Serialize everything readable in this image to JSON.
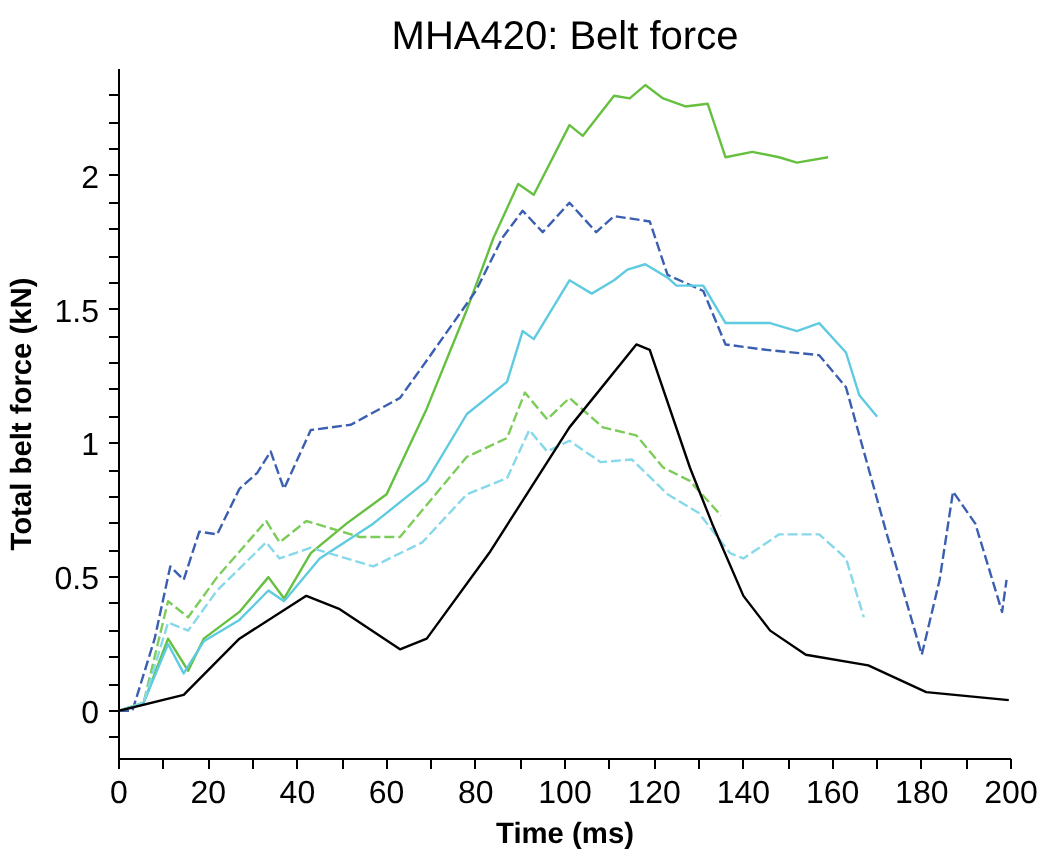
{
  "chart_data": {
    "type": "line",
    "title": "MHA420: Belt force",
    "xlabel": "Time (ms)",
    "ylabel": "Total belt force (kN)",
    "xlim": [
      0,
      200
    ],
    "ylim": [
      -0.18,
      2.4
    ],
    "xticks": [
      0,
      20,
      40,
      60,
      80,
      100,
      120,
      140,
      160,
      180,
      200,
      {
        "value": 10,
        "label": null
      },
      {
        "value": 30,
        "label": null
      },
      {
        "value": 50,
        "label": null
      },
      {
        "value": 70,
        "label": null
      },
      {
        "value": 90,
        "label": null
      },
      {
        "value": 110,
        "label": null
      },
      {
        "value": 130,
        "label": null
      },
      {
        "value": 150,
        "label": null
      },
      {
        "value": 170,
        "label": null
      },
      {
        "value": 190,
        "label": null
      }
    ],
    "yticks": [
      0,
      0.5,
      1,
      1.5,
      2,
      {
        "value": -0.1,
        "label": null
      },
      {
        "value": 0.1,
        "label": null
      },
      {
        "value": 0.2,
        "label": null
      },
      {
        "value": 0.3,
        "label": null
      },
      {
        "value": 0.4,
        "label": null
      },
      {
        "value": 0.6,
        "label": null
      },
      {
        "value": 0.7,
        "label": null
      },
      {
        "value": 0.8,
        "label": null
      },
      {
        "value": 0.9,
        "label": null
      },
      {
        "value": 1.1,
        "label": null
      },
      {
        "value": 1.2,
        "label": null
      },
      {
        "value": 1.3,
        "label": null
      },
      {
        "value": 1.4,
        "label": null
      },
      {
        "value": 1.6,
        "label": null
      },
      {
        "value": 1.7,
        "label": null
      },
      {
        "value": 1.8,
        "label": null
      },
      {
        "value": 1.9,
        "label": null
      },
      {
        "value": 2.1,
        "label": null
      },
      {
        "value": 2.2,
        "label": null
      },
      {
        "value": 2.3,
        "label": null
      }
    ],
    "series": [
      {
        "color": "#66c040",
        "line_style": "solid",
        "x": [
          0,
          5.5,
          11,
          15.5,
          19,
          27,
          33.5,
          37,
          43,
          51,
          60,
          69,
          78,
          84,
          89.5,
          93,
          101,
          104,
          111,
          114.5,
          118,
          122,
          127,
          132,
          136,
          142,
          148,
          152,
          159
        ],
        "values": [
          0,
          0.03,
          0.27,
          0.15,
          0.27,
          0.37,
          0.5,
          0.42,
          0.59,
          0.7,
          0.81,
          1.13,
          1.5,
          1.77,
          1.97,
          1.93,
          2.19,
          2.15,
          2.3,
          2.29,
          2.34,
          2.29,
          2.26,
          2.27,
          2.07,
          2.09,
          2.07,
          2.05,
          2.07
        ]
      },
      {
        "color": "#3a5fb0",
        "line_style": "dashed",
        "x": [
          0,
          3,
          8,
          11.5,
          14.5,
          18,
          22,
          27,
          31,
          34,
          37,
          43,
          52,
          63,
          69,
          80,
          86,
          90.5,
          95,
          101,
          107,
          111,
          119,
          123,
          131,
          136,
          145,
          157,
          163,
          168,
          172,
          180,
          184,
          187,
          192,
          198,
          199
        ],
        "values": [
          0,
          0,
          0.27,
          0.54,
          0.49,
          0.67,
          0.66,
          0.83,
          0.89,
          0.97,
          0.83,
          1.05,
          1.07,
          1.17,
          1.31,
          1.57,
          1.77,
          1.87,
          1.79,
          1.9,
          1.79,
          1.85,
          1.83,
          1.63,
          1.57,
          1.37,
          1.35,
          1.33,
          1.21,
          0.91,
          0.67,
          0.21,
          0.49,
          0.82,
          0.7,
          0.37,
          0.49
        ]
      },
      {
        "color": "#5ecbe0",
        "line_style": "solid",
        "x": [
          0,
          5.5,
          11,
          14.5,
          19,
          27,
          33.5,
          37,
          45,
          57,
          69,
          78,
          87,
          90.5,
          93,
          101,
          106,
          111,
          114,
          118,
          123,
          125,
          131,
          136,
          146,
          152,
          157,
          163,
          166,
          170
        ],
        "values": [
          0,
          0.03,
          0.25,
          0.14,
          0.26,
          0.34,
          0.45,
          0.41,
          0.57,
          0.7,
          0.86,
          1.11,
          1.23,
          1.42,
          1.39,
          1.61,
          1.56,
          1.61,
          1.65,
          1.67,
          1.62,
          1.59,
          1.59,
          1.45,
          1.45,
          1.42,
          1.45,
          1.34,
          1.18,
          1.1
        ]
      },
      {
        "color": "#7ccc5a",
        "line_style": "dashed",
        "x": [
          0,
          5.5,
          11,
          15.5,
          22,
          33,
          36,
          42,
          54,
          63,
          78,
          87,
          91,
          96,
          101,
          108.5,
          116,
          122,
          128,
          135
        ],
        "values": [
          0,
          0.03,
          0.41,
          0.35,
          0.5,
          0.71,
          0.63,
          0.71,
          0.65,
          0.65,
          0.95,
          1.02,
          1.19,
          1.09,
          1.17,
          1.06,
          1.03,
          0.91,
          0.86,
          0.73
        ]
      },
      {
        "color": "#86d8ea",
        "line_style": "dashed",
        "x": [
          0,
          5.5,
          11,
          15.5,
          22,
          33,
          36,
          43,
          57,
          68,
          78,
          87,
          92,
          96,
          101,
          108,
          115,
          123,
          130,
          137,
          140,
          148,
          157,
          163,
          167
        ],
        "values": [
          0,
          0.03,
          0.33,
          0.3,
          0.45,
          0.63,
          0.57,
          0.61,
          0.54,
          0.63,
          0.81,
          0.87,
          1.05,
          0.97,
          1.01,
          0.93,
          0.94,
          0.81,
          0.74,
          0.59,
          0.57,
          0.66,
          0.66,
          0.57,
          0.35
        ]
      },
      {
        "color": "#000000",
        "line_style": "solid",
        "x": [
          0,
          14.5,
          27,
          42,
          49.5,
          63,
          69,
          83,
          101,
          116,
          119,
          128,
          133,
          140,
          146,
          154,
          168,
          181,
          199.5
        ],
        "values": [
          0,
          0.06,
          0.27,
          0.43,
          0.38,
          0.23,
          0.27,
          0.59,
          1.06,
          1.37,
          1.35,
          0.91,
          0.7,
          0.43,
          0.3,
          0.21,
          0.17,
          0.07,
          0.04
        ]
      }
    ]
  }
}
